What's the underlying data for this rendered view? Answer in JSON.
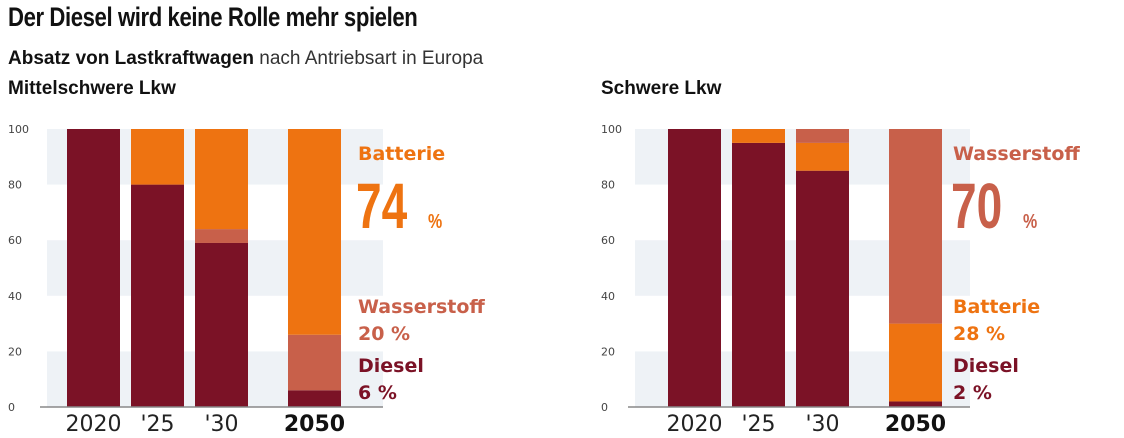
{
  "title": "Der Diesel wird keine Rolle mehr spielen",
  "subtitle": {
    "bold": "Absatz von Lastkraftwagen",
    "rest": " nach Antriebsart in Europa"
  },
  "colors": {
    "diesel": "#7b1226",
    "wasserstoff": "#c8604a",
    "batterie": "#ee7311",
    "band": "#eef2f6",
    "axis": "#888888"
  },
  "chart_data": [
    {
      "type": "bar",
      "stacked": true,
      "title": "Mittelschwere Lkw",
      "categories": [
        "2020",
        "'25",
        "'30",
        "2050"
      ],
      "ylim": [
        0,
        100
      ],
      "yticks": [
        "0",
        "20",
        "40",
        "60",
        "80",
        "100"
      ],
      "series": [
        {
          "name": "Diesel",
          "key": "diesel",
          "values": [
            100,
            80,
            59,
            6
          ]
        },
        {
          "name": "Wasserstoff",
          "key": "wasserstoff",
          "values": [
            0,
            0,
            5,
            20
          ]
        },
        {
          "name": "Batterie",
          "key": "batterie",
          "values": [
            0,
            20,
            36,
            74
          ]
        }
      ],
      "annotations": [
        {
          "series": "Batterie",
          "label": "Batterie",
          "value": "74",
          "unit": "%",
          "style": "big",
          "key": "batterie"
        },
        {
          "series": "Wasserstoff",
          "label": "Wasserstoff",
          "value": "20 %",
          "style": "small",
          "key": "wasserstoff"
        },
        {
          "series": "Diesel",
          "label": "Diesel",
          "value": "6 %",
          "style": "small",
          "key": "diesel"
        }
      ]
    },
    {
      "type": "bar",
      "stacked": true,
      "title": "Schwere Lkw",
      "categories": [
        "2020",
        "'25",
        "'30",
        "2050"
      ],
      "ylim": [
        0,
        100
      ],
      "yticks": [
        "0",
        "20",
        "40",
        "60",
        "80",
        "100"
      ],
      "series": [
        {
          "name": "Diesel",
          "key": "diesel",
          "values": [
            100,
            95,
            85,
            2
          ]
        },
        {
          "name": "Batterie",
          "key": "batterie",
          "values": [
            0,
            5,
            10,
            28
          ]
        },
        {
          "name": "Wasserstoff",
          "key": "wasserstoff",
          "values": [
            0,
            0,
            5,
            70
          ]
        }
      ],
      "annotations": [
        {
          "series": "Wasserstoff",
          "label": "Wasserstoff",
          "value": "70",
          "unit": "%",
          "style": "big",
          "key": "wasserstoff"
        },
        {
          "series": "Batterie",
          "label": "Batterie",
          "value": "28 %",
          "style": "small",
          "key": "batterie"
        },
        {
          "series": "Diesel",
          "label": "Diesel",
          "value": "2 %",
          "style": "small",
          "key": "diesel"
        }
      ]
    }
  ]
}
